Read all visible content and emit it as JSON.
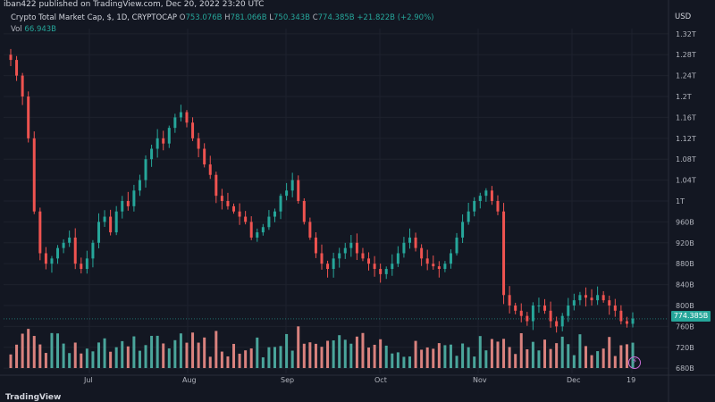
{
  "header": {
    "caption": "iban422 published on TradingView.com, Dec 20, 2022 23:20 UTC"
  },
  "legend": {
    "symbol": "Crypto Total Market Cap, $, 1D, CRYPTOCAP",
    "o_label": "O",
    "o_val": "753.076B",
    "h_label": "H",
    "h_val": "781.066B",
    "l_label": "L",
    "l_val": "750.343B",
    "c_label": "C",
    "c_val": "774.385B",
    "change": "+21.822B (+2.90%)",
    "vol_label": "Vol",
    "vol_val": "66.943B"
  },
  "axis": {
    "currency": "USD",
    "y_ticks": [
      "1.32T",
      "1.28T",
      "1.24T",
      "1.2T",
      "1.16T",
      "1.12T",
      "1.08T",
      "1.04T",
      "1T",
      "960B",
      "920B",
      "880B",
      "840B",
      "800B",
      "760B",
      "720B",
      "680B"
    ],
    "x_ticks": [
      "Jul",
      "Aug",
      "Sep",
      "Oct",
      "Nov",
      "Dec",
      "19"
    ],
    "last_price": "774.385B"
  },
  "branding": {
    "logo_text": "TradingView"
  },
  "colors": {
    "up": "#26a69a",
    "down": "#ef5350",
    "bg": "#131722",
    "vol_up": "#4aa59b",
    "vol_down": "#d9827e"
  },
  "chart_data": {
    "type": "candlestick",
    "title": "Crypto Total Market Cap, $, 1D, CRYPTOCAP",
    "y_unit": "USD (billions)",
    "ylim": [
      670,
      1330
    ],
    "x_range": [
      "2022-06-13",
      "2022-12-20"
    ],
    "close_series": [
      1270,
      1240,
      1200,
      1120,
      980,
      900,
      880,
      890,
      910,
      920,
      930,
      880,
      870,
      890,
      920,
      960,
      970,
      940,
      980,
      1000,
      990,
      1020,
      1040,
      1080,
      1100,
      1120,
      1110,
      1140,
      1160,
      1170,
      1150,
      1120,
      1100,
      1070,
      1050,
      1010,
      1000,
      990,
      980,
      970,
      960,
      930,
      940,
      950,
      970,
      980,
      1010,
      1020,
      1040,
      1000,
      960,
      930,
      900,
      880,
      870,
      890,
      900,
      910,
      920,
      900,
      890,
      880,
      870,
      860,
      870,
      880,
      900,
      920,
      930,
      910,
      890,
      880,
      875,
      870,
      880,
      900,
      930,
      960,
      980,
      1000,
      1010,
      1020,
      1000,
      980,
      820,
      800,
      790,
      780,
      770,
      800,
      800,
      790,
      770,
      760,
      780,
      800,
      810,
      820,
      815,
      810,
      820,
      810,
      800,
      790,
      770,
      765,
      775
    ]
  }
}
